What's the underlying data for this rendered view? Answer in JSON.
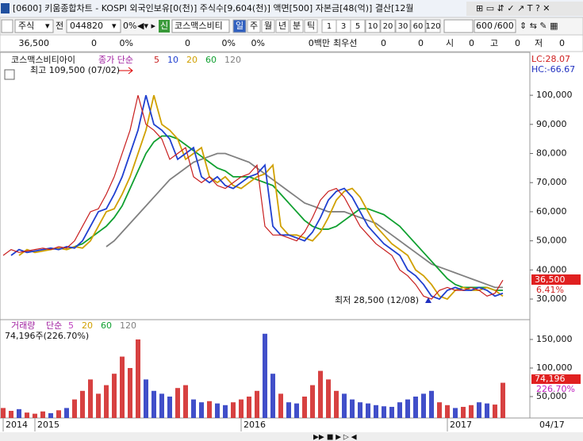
{
  "window": {
    "title": "[0600] 키움종합차트 - KOSPI 외국인보유[0(천)] 주식수[9,604(천)] 액면[500] 자본금[48(억)] 결산[12월"
  },
  "toolbar": {
    "market": "주식",
    "prev": "전",
    "code": "044820",
    "pct": "0%",
    "new_badge": "신",
    "name": "코스맥스비티",
    "periods": [
      "일",
      "주",
      "월",
      "년",
      "분",
      "틱"
    ],
    "intervals": [
      "1",
      "3",
      "5",
      "10",
      "20",
      "30",
      "60",
      "120"
    ],
    "count": "600",
    "total": "/600"
  },
  "info_bar": [
    "36,500",
    "0",
    "0%",
    "0",
    "0%",
    "0%",
    "0백만",
    "최우선",
    "0",
    "0",
    "시",
    "0",
    "고",
    "0",
    "저",
    "0"
  ],
  "chart_data": [
    {
      "type": "line",
      "title": "코스맥스비티아이",
      "legend_prefix": "종가 단순",
      "high_label": "최고 109,500 (07/02)",
      "low_label": "최저 28,500 (12/08)",
      "lc": "LC:28.07",
      "hc": "HC:-66.67",
      "last_label": "36,500",
      "change_label": "6.41%",
      "categories": [
        "2014",
        null,
        null,
        null,
        "2015",
        null,
        null,
        null,
        null,
        null,
        null,
        null,
        null,
        null,
        null,
        null,
        null,
        null,
        null,
        null,
        null,
        null,
        null,
        null,
        null,
        null,
        null,
        null,
        null,
        null,
        "2016",
        null,
        null,
        null,
        null,
        null,
        null,
        null,
        null,
        null,
        null,
        null,
        null,
        null,
        null,
        null,
        null,
        null,
        null,
        null,
        null,
        null,
        null,
        null,
        null,
        null,
        "2017",
        null,
        null,
        null,
        null,
        null,
        null,
        null
      ],
      "ylim": [
        23200,
        114200
      ],
      "yticks": [
        {
          "value": 30000,
          "label": "30,000"
        },
        {
          "value": 40000,
          "label": "40,000"
        },
        {
          "value": 50000,
          "label": "50,000"
        },
        {
          "value": 60000,
          "label": "60,000"
        },
        {
          "value": 70000,
          "label": "70,000"
        },
        {
          "value": 80000,
          "label": "80,000"
        },
        {
          "value": 90000,
          "label": "90,000"
        },
        {
          "value": 100000,
          "label": "100,000"
        }
      ],
      "series": [
        {
          "name": "5",
          "color": "#c81e1e",
          "values": [
            45000,
            47000,
            46000,
            46500,
            47000,
            47500,
            47000,
            48000,
            47500,
            50000,
            55000,
            60000,
            61000,
            66000,
            72000,
            80000,
            88000,
            100000,
            90000,
            88000,
            85000,
            78000,
            80000,
            82000,
            72000,
            70000,
            72000,
            69000,
            68000,
            70000,
            72000,
            73000,
            76000,
            55000,
            52000,
            52000,
            51000,
            50000,
            53000,
            58000,
            64000,
            67000,
            68000,
            65000,
            60000,
            55000,
            52000,
            49000,
            47000,
            45000,
            40000,
            38000,
            35000,
            31000,
            30000,
            33000,
            34000,
            33000,
            33000,
            34000,
            33000,
            31000,
            32000,
            36500
          ]
        },
        {
          "name": "10",
          "color": "#2040d0",
          "values": [
            null,
            45000,
            47000,
            46000,
            46500,
            47000,
            47500,
            47000,
            48000,
            47500,
            50000,
            55000,
            60000,
            61000,
            66000,
            72000,
            80000,
            88000,
            100000,
            90000,
            88000,
            85000,
            78000,
            80000,
            82000,
            72000,
            70000,
            72000,
            69000,
            68000,
            70000,
            72000,
            73000,
            76000,
            55000,
            52000,
            52000,
            51000,
            50000,
            53000,
            58000,
            64000,
            67000,
            68000,
            65000,
            60000,
            55000,
            52000,
            49000,
            47000,
            45000,
            40000,
            38000,
            35000,
            31000,
            30000,
            33000,
            34000,
            33000,
            33000,
            34000,
            33000,
            31000,
            32000
          ]
        },
        {
          "name": "20",
          "color": "#d0a000",
          "values": [
            null,
            null,
            45000,
            47000,
            46000,
            46500,
            47000,
            47500,
            47000,
            48000,
            47500,
            50000,
            55000,
            60000,
            61000,
            66000,
            72000,
            80000,
            88000,
            100000,
            90000,
            88000,
            85000,
            78000,
            80000,
            82000,
            72000,
            70000,
            72000,
            69000,
            68000,
            70000,
            72000,
            73000,
            76000,
            55000,
            52000,
            52000,
            51000,
            50000,
            53000,
            58000,
            64000,
            67000,
            68000,
            65000,
            60000,
            55000,
            52000,
            49000,
            47000,
            45000,
            40000,
            38000,
            35000,
            31000,
            30000,
            33000,
            34000,
            33000,
            33000,
            34000,
            33000,
            31000
          ]
        },
        {
          "name": "60",
          "color": "#10a030",
          "values": [
            null,
            null,
            null,
            null,
            null,
            null,
            null,
            null,
            47000,
            48000,
            49000,
            51000,
            53000,
            55000,
            58000,
            62000,
            68000,
            74000,
            80000,
            84000,
            86000,
            86000,
            85000,
            83000,
            81000,
            79000,
            77000,
            75000,
            74000,
            72000,
            72000,
            72000,
            71000,
            70000,
            69000,
            66000,
            63000,
            60000,
            57000,
            55000,
            54000,
            54000,
            55000,
            57000,
            59000,
            61000,
            61000,
            60000,
            59000,
            57000,
            55000,
            52000,
            49000,
            46000,
            43000,
            40000,
            37000,
            35000,
            34000,
            34000,
            34000,
            34000,
            33000,
            33000
          ]
        },
        {
          "name": "120",
          "color": "#808080",
          "values": [
            null,
            null,
            null,
            null,
            null,
            null,
            null,
            null,
            null,
            null,
            null,
            null,
            null,
            48000,
            50000,
            53000,
            56000,
            59000,
            62000,
            65000,
            68000,
            71000,
            73000,
            75000,
            77000,
            78000,
            79000,
            80000,
            80000,
            79000,
            78000,
            77000,
            75000,
            73000,
            71000,
            69000,
            67000,
            65000,
            63000,
            62000,
            61000,
            60000,
            60000,
            60000,
            59000,
            58000,
            57000,
            56000,
            54000,
            52000,
            50000,
            48000,
            46000,
            44000,
            42000,
            41000,
            40000,
            39000,
            38000,
            37000,
            36000,
            35000,
            34000,
            34000
          ]
        }
      ]
    },
    {
      "type": "bar",
      "title": "거래량",
      "legend_prefix": "단순",
      "last_label": "74,196주(226.70%)",
      "value_label": "74,196",
      "ratio_label": "226.70%",
      "legend": [
        {
          "name": "5",
          "color": "#c040c0"
        },
        {
          "name": "20",
          "color": "#d0a000"
        },
        {
          "name": "60",
          "color": "#10a030"
        },
        {
          "name": "120",
          "color": "#808080"
        }
      ],
      "up_color": "#d02020",
      "down_color": "#2030c0",
      "ylim": [
        12500,
        183300
      ],
      "yticks": [
        {
          "value": 50000,
          "label": "50,000"
        },
        {
          "value": 100000,
          "label": "100,000"
        },
        {
          "value": 150000,
          "label": "150,000"
        }
      ],
      "values": [
        30000,
        25000,
        28000,
        22000,
        20000,
        24000,
        21000,
        26000,
        30000,
        45000,
        60000,
        80000,
        55000,
        70000,
        90000,
        120000,
        100000,
        150000,
        80000,
        60000,
        55000,
        50000,
        65000,
        70000,
        45000,
        40000,
        42000,
        38000,
        35000,
        40000,
        45000,
        50000,
        60000,
        160000,
        90000,
        55000,
        40000,
        38000,
        50000,
        70000,
        95000,
        80000,
        60000,
        55000,
        45000,
        40000,
        38000,
        35000,
        33000,
        32000,
        40000,
        45000,
        50000,
        55000,
        60000,
        40000,
        35000,
        30000,
        32000,
        35000,
        40000,
        38000,
        36000,
        74196
      ]
    }
  ],
  "footer": {
    "date": "04/17"
  }
}
